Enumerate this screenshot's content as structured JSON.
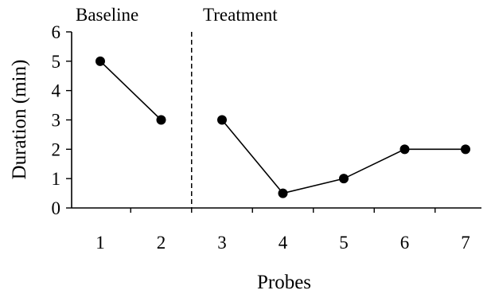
{
  "chart_data": {
    "type": "line",
    "xlabel": "Probes",
    "ylabel": "Duration (min)",
    "x": [
      1,
      2,
      3,
      4,
      5,
      6,
      7
    ],
    "ylim": [
      0,
      6
    ],
    "yticks": [
      0,
      1,
      2,
      3,
      4,
      5,
      6
    ],
    "xticks": [
      1,
      2,
      3,
      4,
      5,
      6,
      7
    ],
    "grid": false,
    "phases": [
      {
        "label": "Baseline",
        "x": [
          1,
          2
        ],
        "values": [
          5,
          3
        ]
      },
      {
        "label": "Treatment",
        "x": [
          3,
          4,
          5,
          6,
          7
        ],
        "values": [
          3,
          0.5,
          1,
          2,
          2
        ]
      }
    ],
    "phase_change_after_x": 2.5,
    "colors": {
      "line": "#000000",
      "marker": "#000000"
    }
  }
}
